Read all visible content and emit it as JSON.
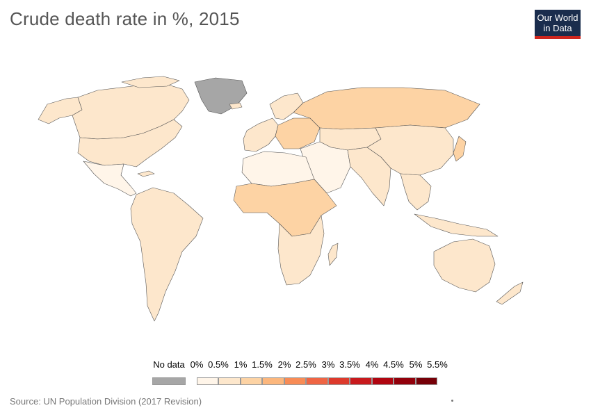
{
  "header": {
    "title": "Crude death rate in %, 2015",
    "logo_line1": "Our World",
    "logo_line2": "in Data"
  },
  "legend": {
    "no_data_label": "No data",
    "no_data_color": "#a6a6a6",
    "bins": [
      {
        "label": "0%",
        "color": "#fff5e9"
      },
      {
        "label": "0.5%",
        "color": "#fde7cc"
      },
      {
        "label": "1%",
        "color": "#fdd3a4"
      },
      {
        "label": "1.5%",
        "color": "#fcb77d"
      },
      {
        "label": "2%",
        "color": "#f88c56"
      },
      {
        "label": "2.5%",
        "color": "#ef6544"
      },
      {
        "label": "3%",
        "color": "#dd3a2c"
      },
      {
        "label": "3.5%",
        "color": "#c81a1d"
      },
      {
        "label": "4%",
        "color": "#b00510"
      },
      {
        "label": "4.5%",
        "color": "#92000b"
      },
      {
        "label": "5%",
        "color": "#760008"
      },
      {
        "label": "5.5%",
        "color": ""
      }
    ]
  },
  "footer": {
    "source": "Source: UN Population Division (2017 Revision)"
  },
  "map_colors": {
    "very_light": "#fff5e9",
    "light": "#fde7cc",
    "medium": "#fdd3a4",
    "no_data": "#a6a6a6",
    "border": "#555555"
  }
}
